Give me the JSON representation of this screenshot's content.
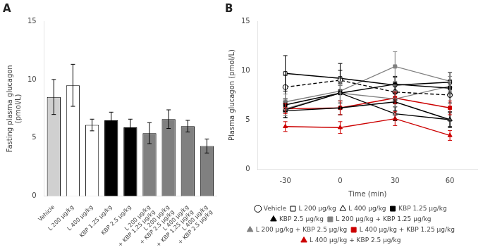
{
  "chart_data": [
    {
      "type": "bar",
      "title": "A",
      "categories": [
        "Vehicle",
        "L 200 μg/kg",
        "L 400 μg/kg",
        "KBP 1.25 μg/kg",
        "KBP 2.5 μg/kg",
        "L 200 μg/kg\n+ KBP 1.25 μg/kg",
        "L 200 μg/kg\n+ KBP 2.5 μg/kg",
        "L 400 μg/kg\n+ KBP 1.25 μg/kg",
        "L 400 μg/kg\n+ KBP 2.5 μg/kg"
      ],
      "values": [
        8.5,
        9.5,
        6.1,
        6.5,
        5.9,
        5.4,
        6.6,
        6.0,
        4.3
      ],
      "errors": [
        1.5,
        1.8,
        0.5,
        0.7,
        0.7,
        0.9,
        0.8,
        0.5,
        0.6
      ],
      "colors": [
        "#d0d0d0",
        "#ffffff",
        "#ffffff",
        "#000000",
        "#000000",
        "#808080",
        "#808080",
        "#808080",
        "#808080"
      ],
      "ylabel": "Fasting plasma glucagon\n(pmol/L)",
      "ylim": [
        0,
        15
      ],
      "yticks": [
        0,
        5,
        10,
        15
      ],
      "grid": false
    },
    {
      "type": "line",
      "title": "B",
      "x": [
        -30,
        0,
        30,
        60
      ],
      "series": [
        {
          "name": "Vehicle",
          "values": [
            8.3,
            9.0,
            7.8,
            7.5
          ],
          "errors": [
            1.2,
            1.0,
            0.8,
            0.8
          ],
          "color": "#000000",
          "line_style": "dashed",
          "marker": "circle-open"
        },
        {
          "name": "L 200 μg/kg",
          "values": [
            9.7,
            9.2,
            8.5,
            8.8
          ],
          "errors": [
            1.8,
            1.5,
            0.8,
            1.0
          ],
          "color": "#000000",
          "line_style": "solid",
          "marker": "square-open"
        },
        {
          "name": "L 400 μg/kg",
          "values": [
            6.0,
            7.7,
            5.6,
            5.0
          ],
          "errors": [
            0.8,
            1.0,
            0.7,
            0.7
          ],
          "color": "#000000",
          "line_style": "solid",
          "marker": "triangle-open"
        },
        {
          "name": "KBP 1.25 μg/kg",
          "values": [
            6.5,
            7.7,
            8.6,
            8.2
          ],
          "errors": [
            0.6,
            0.8,
            0.8,
            0.6
          ],
          "color": "#000000",
          "line_style": "solid",
          "marker": "square"
        },
        {
          "name": "KBP 2.5 μg/kg",
          "values": [
            5.9,
            6.2,
            6.8,
            5.0
          ],
          "errors": [
            0.7,
            0.7,
            0.9,
            0.8
          ],
          "color": "#000000",
          "line_style": "solid",
          "marker": "triangle"
        },
        {
          "name": "L 200 μg/kg + KBP 1.25 μg/kg",
          "values": [
            6.8,
            7.9,
            10.4,
            8.9
          ],
          "errors": [
            0.8,
            1.0,
            1.5,
            0.9
          ],
          "color": "#808080",
          "line_style": "solid",
          "marker": "square"
        },
        {
          "name": "L 200 μg/kg + KBP 2.5 μg/kg",
          "values": [
            6.1,
            7.7,
            7.1,
            8.4
          ],
          "errors": [
            0.7,
            0.8,
            0.8,
            1.0
          ],
          "color": "#808080",
          "line_style": "solid",
          "marker": "triangle"
        },
        {
          "name": "L 400 μg/kg + KBP 1.25 μg/kg",
          "values": [
            6.1,
            6.2,
            7.2,
            6.2
          ],
          "errors": [
            0.5,
            0.7,
            0.6,
            0.7
          ],
          "color": "#cc0000",
          "line_style": "solid",
          "marker": "square"
        },
        {
          "name": "L 400 μg/kg + KBP 2.5 μg/kg",
          "values": [
            4.3,
            4.2,
            5.1,
            3.4
          ],
          "errors": [
            0.5,
            0.6,
            0.7,
            0.5
          ],
          "color": "#cc0000",
          "line_style": "solid",
          "marker": "triangle"
        }
      ],
      "xlabel": "Time (min)",
      "ylabel": "Plasma glucagon (pmol/L)",
      "xlim": [
        -45,
        75
      ],
      "xticks": [
        -30,
        0,
        30,
        60
      ],
      "ylim": [
        0,
        15
      ],
      "yticks": [
        0,
        5,
        10,
        15
      ],
      "grid": false,
      "legend": "bottom"
    }
  ]
}
